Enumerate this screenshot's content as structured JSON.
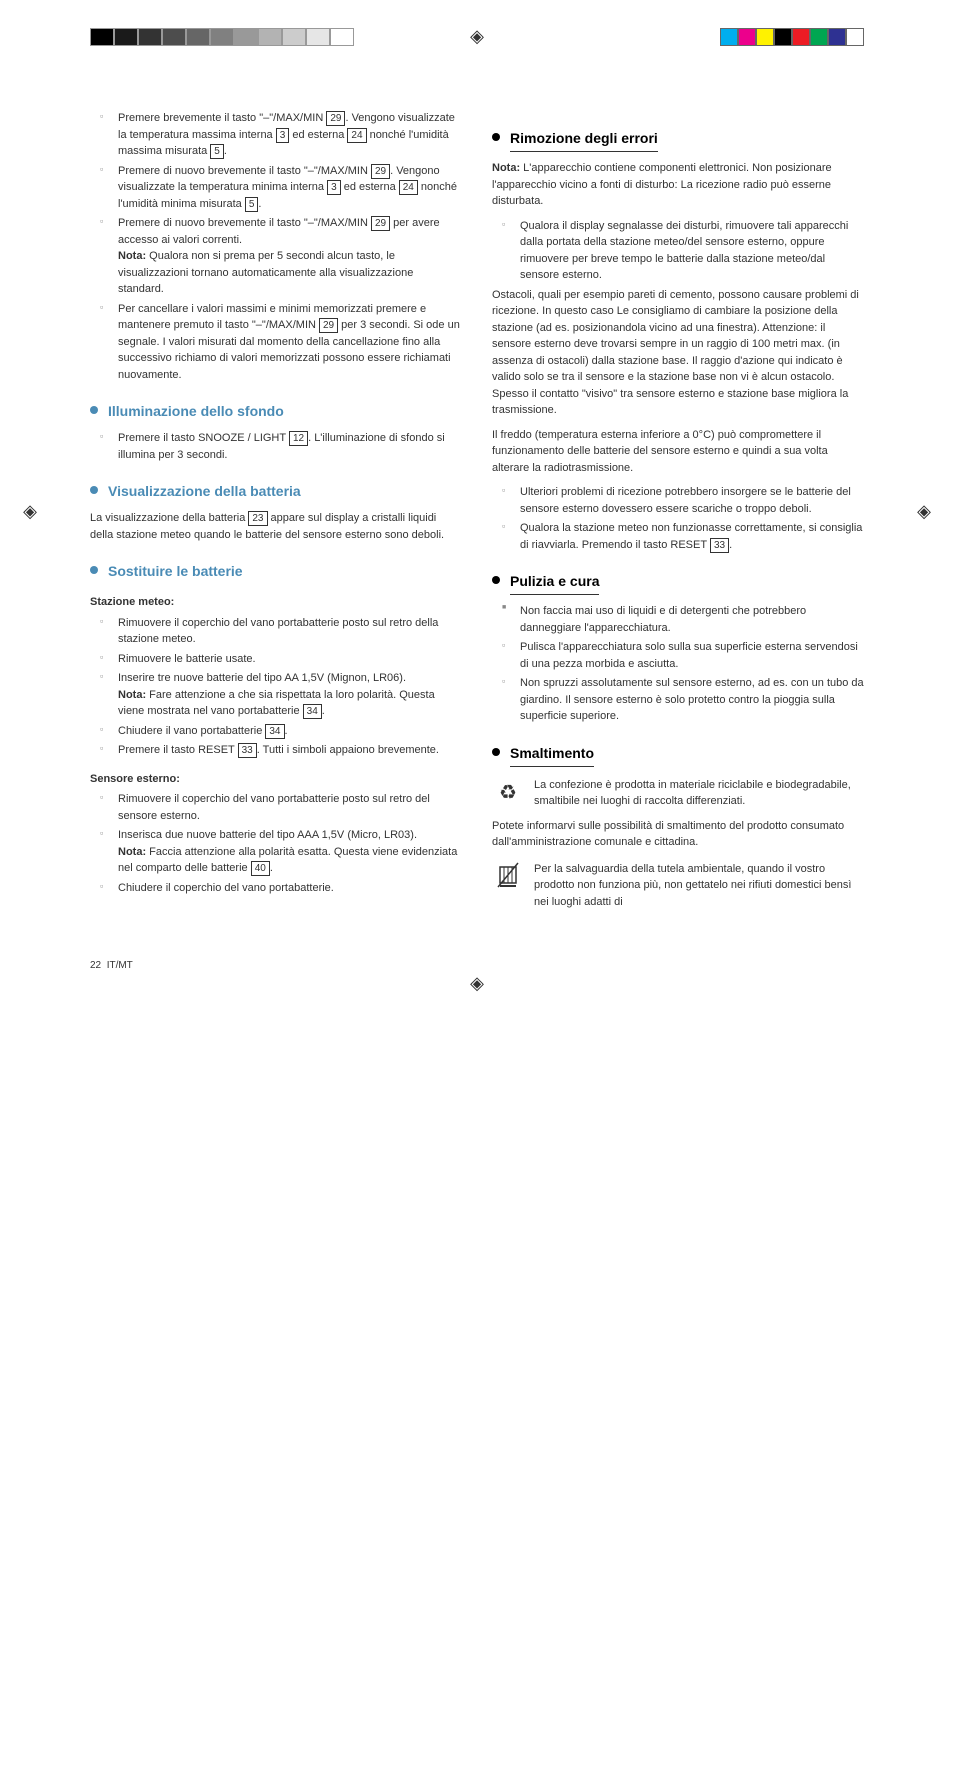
{
  "color_bars": [
    "#00aeef",
    "#ec008c",
    "#fff200",
    "#000000",
    "#ed1c24",
    "#00a651",
    "#2e3192",
    "#ffffff"
  ],
  "gray_bars": [
    "#000",
    "#1a1a1a",
    "#333",
    "#4d4d4d",
    "#666",
    "#808080",
    "#999",
    "#b3b3b3",
    "#ccc",
    "#e6e6e6",
    "#fff"
  ],
  "left": {
    "li1_a": "Premere brevemente il tasto \"–\"/MAX/MIN ",
    "li1_b": ". Vengono visualizzate la temperatura massima interna ",
    "li1_c": " ed esterna ",
    "li1_d": " nonché l'umidità massima misurata ",
    "li2_a": "Premere di nuovo brevemente il tasto \"–\"/MAX/MIN ",
    "li2_b": ". Vengono visualizzate la temperatura minima interna ",
    "li2_c": " ed esterna ",
    "li2_d": " nonché l'umidità minima misurata ",
    "li3_a": "Premere di nuovo brevemente il tasto \"–\"/MAX/MIN ",
    "li3_b": " per avere accesso ai valori correnti.",
    "nota1_label": "Nota:",
    "nota1": " Qualora non si prema per 5 secondi alcun tasto, le visualizzazioni tornano automaticamente alla visualizzazione standard.",
    "li4_a": "Per cancellare i valori massimi e minimi memorizzati premere e mantenere premuto il tasto \"–\"/MAX/MIN ",
    "li4_b": " per 3 secondi. Si ode un segnale. I valori misurati dal momento della cancellazione fino alla successivo richiamo di valori memorizzati possono essere richiamati nuovamente.",
    "h_illum": "Illuminazione dello sfondo",
    "illum_a": "Premere il tasto SNOOZE / LIGHT ",
    "illum_b": ". L'illuminazione di sfondo si illumina per 3 secondi.",
    "h_batt_view": "Visualizzazione della batteria",
    "batt_view_a": "La visualizzazione della batteria ",
    "batt_view_b": " appare sul display a cristalli liquidi della stazione meteo quando le batterie del sensore esterno sono deboli.",
    "h_sost": "Sostituire le batterie",
    "staz_label": "Stazione meteo:",
    "staz_li1": "Rimuovere il coperchio del vano portabatterie posto sul retro della stazione meteo.",
    "staz_li2": "Rimuovere le batterie usate.",
    "staz_li3": "Inserire tre nuove batterie del tipo AA 1,5V (Mignon, LR06).",
    "staz_nota_label": "Nota:",
    "staz_nota_a": " Fare attenzione a che sia rispettata la loro polarità. Questa viene mostrata nel vano portabatterie ",
    "staz_li4_a": "Chiudere il vano portabatterie ",
    "staz_li5_a": "Premere il tasto RESET ",
    "staz_li5_b": ". Tutti i simboli appaiono brevemente.",
    "sens_label": "Sensore esterno:",
    "sens_li1": "Rimuovere il coperchio del vano portabatterie posto sul retro del sensore esterno.",
    "sens_li2": "Inserisca due nuove batterie del tipo AAA 1,5V (Micro, LR03).",
    "sens_nota_label": "Nota:",
    "sens_nota_a": " Faccia attenzione alla polarità esatta. Questa viene evidenziata nel comparto delle batterie ",
    "sens_li3": "Chiudere il coperchio del vano portabatterie.",
    "ref_29": "29",
    "ref_3": "3",
    "ref_24": "24",
    "ref_5": "5",
    "ref_12": "12",
    "ref_23": "23",
    "ref_34": "34",
    "ref_33": "33",
    "ref_40": "40"
  },
  "right": {
    "h_rimoz": "Rimozione degli errori",
    "nota_label": "Nota:",
    "nota_text": " L'apparecchio contiene componenti elettronici. Non posizionare l'apparecchio vicino a fonti di disturbo: La ricezione radio può esserne disturbata.",
    "li1": "Qualora il display segnalasse dei disturbi, rimuovere tali apparecchi dalla portata della stazione meteo/del sensore esterno, oppure rimuovere per breve tempo le batterie dalla stazione meteo/dal sensore esterno.",
    "p_ostacoli": "Ostacoli, quali per esempio pareti di cemento, possono causare problemi di ricezione. In questo caso Le consigliamo di cambiare la posizione della stazione (ad es. posizionandola vicino ad una finestra). Attenzione: il sensore esterno deve trovarsi sempre in un raggio di 100 metri max. (in assenza di ostacoli) dalla stazione base. Il raggio d'azione qui indicato è valido solo se tra il sensore e la stazione base non vi è alcun ostacolo. Spesso il contatto \"visivo\" tra sensore esterno e stazione base migliora la trasmissione.",
    "p_freddo": "Il freddo (temperatura esterna inferiore a 0°C) può compromettere il funzionamento delle batterie del sensore esterno e quindi a sua volta alterare la radiotrasmissione.",
    "li2": "Ulteriori problemi di ricezione potrebbero insorgere se le batterie del sensore esterno dovessero essere scariche o troppo deboli.",
    "li3_a": "Qualora la stazione meteo non funzionasse correttamente, si consiglia di riavviarla. Premendo il tasto RESET ",
    "h_pulizia": "Pulizia e cura",
    "pul_li1": "Non faccia mai uso di liquidi e di detergenti che potrebbero danneggiare l'apparecchiatura.",
    "pul_li2": "Pulisca l'apparecchiatura solo sulla sua superficie esterna servendosi di una pezza morbida e asciutta.",
    "pul_li3": "Non spruzzi assolutamente sul sensore esterno, ad es. con un tubo da giardino. Il sensore esterno è solo protetto contro la pioggia sulla superficie superiore.",
    "h_smalt": "Smaltimento",
    "smalt_p1": "La confezione è prodotta in materiale riciclabile e biodegradabile, smaltibile nei luoghi di raccolta differenziati.",
    "smalt_p2": "Potete informarvi sulle possibilità di smaltimento del prodotto consumato dall'amministrazione comunale e cittadina.",
    "smalt_p3": "Per la salvaguardia della tutela ambientale, quando il vostro prodotto non funziona più, non gettatelo nei rifiuti domestici bensì nei luoghi adatti di",
    "ref_33": "33"
  },
  "footer": {
    "page": "22",
    "lang": "IT/MT"
  }
}
